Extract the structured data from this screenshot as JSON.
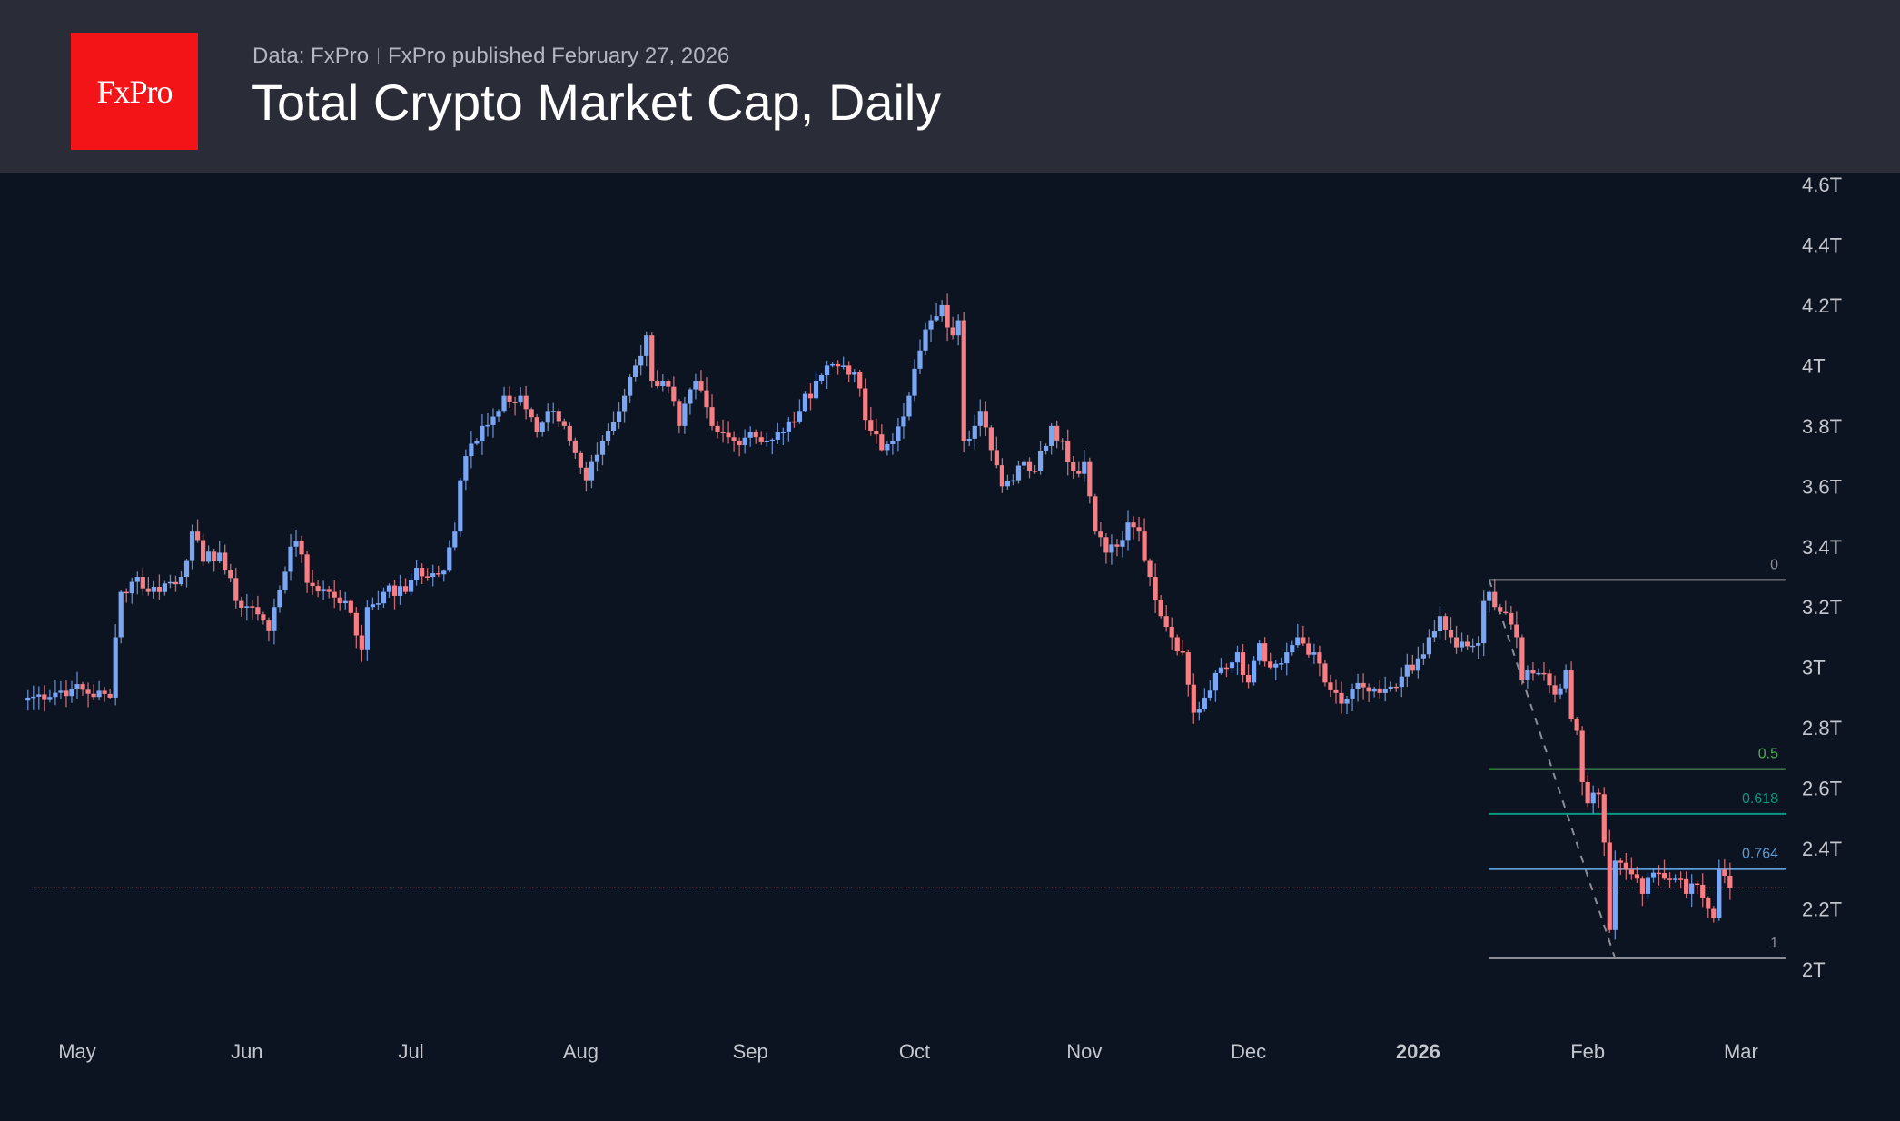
{
  "header": {
    "logo_text": "FxPro",
    "source": "Data: FxPro",
    "published": "FxPro published February 27, 2026",
    "title": "Total Crypto Market Cap, Daily"
  },
  "colors": {
    "up": "#7aa7f5",
    "down": "#f77f84",
    "background": "#0d1421",
    "header_bg": "#2a2d38",
    "brand_red": "#f21416"
  },
  "chart_data": {
    "type": "candlestick",
    "title": "Total Crypto Market Cap, Daily",
    "y_unit": "T",
    "ylim": [
      1.75,
      4.7
    ],
    "y_ticks": [
      "2T",
      "2.2T",
      "2.4T",
      "2.6T",
      "2.8T",
      "3T",
      "3.2T",
      "3.4T",
      "3.6T",
      "3.8T",
      "4T",
      "4.2T",
      "4.4T",
      "4.6T"
    ],
    "y_tick_values": [
      2,
      2.2,
      2.4,
      2.6,
      2.8,
      3,
      3.2,
      3.4,
      3.6,
      3.8,
      4,
      4.2,
      4.4,
      4.6
    ],
    "x_ticks": [
      {
        "label": "May",
        "date": "2025-05-01",
        "bold": false
      },
      {
        "label": "Jun",
        "date": "2025-06-01",
        "bold": false
      },
      {
        "label": "Jul",
        "date": "2025-07-01",
        "bold": false
      },
      {
        "label": "Aug",
        "date": "2025-08-01",
        "bold": false
      },
      {
        "label": "Sep",
        "date": "2025-09-01",
        "bold": false
      },
      {
        "label": "Oct",
        "date": "2025-10-01",
        "bold": false
      },
      {
        "label": "Nov",
        "date": "2025-11-01",
        "bold": false
      },
      {
        "label": "Dec",
        "date": "2025-12-01",
        "bold": false
      },
      {
        "label": "2026",
        "date": "2026-01-01",
        "bold": true
      },
      {
        "label": "Feb",
        "date": "2026-02-01",
        "bold": false
      },
      {
        "label": "Mar",
        "date": "2026-03-01",
        "bold": false
      }
    ],
    "approx_closes": [
      [
        "2025-04-22",
        2.9
      ],
      [
        "2025-04-30",
        2.93
      ],
      [
        "2025-05-07",
        2.9
      ],
      [
        "2025-05-08",
        3.1
      ],
      [
        "2025-05-09",
        3.25
      ],
      [
        "2025-05-12",
        3.3
      ],
      [
        "2025-05-14",
        3.25
      ],
      [
        "2025-05-20",
        3.3
      ],
      [
        "2025-05-22",
        3.45
      ],
      [
        "2025-05-24",
        3.35
      ],
      [
        "2025-05-27",
        3.38
      ],
      [
        "2025-05-30",
        3.22
      ],
      [
        "2025-06-02",
        3.2
      ],
      [
        "2025-06-05",
        3.12
      ],
      [
        "2025-06-06",
        3.2
      ],
      [
        "2025-06-09",
        3.4
      ],
      [
        "2025-06-10",
        3.42
      ],
      [
        "2025-06-12",
        3.28
      ],
      [
        "2025-06-16",
        3.25
      ],
      [
        "2025-06-19",
        3.22
      ],
      [
        "2025-06-22",
        3.06
      ],
      [
        "2025-06-23",
        3.2
      ],
      [
        "2025-06-26",
        3.25
      ],
      [
        "2025-06-30",
        3.25
      ],
      [
        "2025-07-02",
        3.33
      ],
      [
        "2025-07-04",
        3.3
      ],
      [
        "2025-07-07",
        3.32
      ],
      [
        "2025-07-09",
        3.45
      ],
      [
        "2025-07-10",
        3.62
      ],
      [
        "2025-07-11",
        3.7
      ],
      [
        "2025-07-14",
        3.8
      ],
      [
        "2025-07-17",
        3.85
      ],
      [
        "2025-07-18",
        3.9
      ],
      [
        "2025-07-21",
        3.9
      ],
      [
        "2025-07-24",
        3.78
      ],
      [
        "2025-07-27",
        3.85
      ],
      [
        "2025-07-29",
        3.8
      ],
      [
        "2025-08-02",
        3.62
      ],
      [
        "2025-08-05",
        3.75
      ],
      [
        "2025-08-09",
        3.9
      ],
      [
        "2025-08-11",
        4.0
      ],
      [
        "2025-08-13",
        4.1
      ],
      [
        "2025-08-14",
        3.95
      ],
      [
        "2025-08-17",
        3.93
      ],
      [
        "2025-08-19",
        3.8
      ],
      [
        "2025-08-22",
        3.95
      ],
      [
        "2025-08-25",
        3.8
      ],
      [
        "2025-08-26",
        3.78
      ],
      [
        "2025-08-29",
        3.75
      ],
      [
        "2025-09-01",
        3.78
      ],
      [
        "2025-09-04",
        3.75
      ],
      [
        "2025-09-07",
        3.78
      ],
      [
        "2025-09-10",
        3.85
      ],
      [
        "2025-09-13",
        3.95
      ],
      [
        "2025-09-15",
        4.0
      ],
      [
        "2025-09-18",
        4.0
      ],
      [
        "2025-09-20",
        3.98
      ],
      [
        "2025-09-22",
        3.82
      ],
      [
        "2025-09-25",
        3.72
      ],
      [
        "2025-09-27",
        3.75
      ],
      [
        "2025-09-30",
        3.9
      ],
      [
        "2025-10-02",
        4.05
      ],
      [
        "2025-10-04",
        4.15
      ],
      [
        "2025-10-06",
        4.2
      ],
      [
        "2025-10-08",
        4.1
      ],
      [
        "2025-10-09",
        4.15
      ],
      [
        "2025-10-10",
        3.75
      ],
      [
        "2025-10-12",
        3.8
      ],
      [
        "2025-10-13",
        3.85
      ],
      [
        "2025-10-15",
        3.72
      ],
      [
        "2025-10-17",
        3.6
      ],
      [
        "2025-10-19",
        3.62
      ],
      [
        "2025-10-21",
        3.68
      ],
      [
        "2025-10-23",
        3.65
      ],
      [
        "2025-10-26",
        3.8
      ],
      [
        "2025-10-28",
        3.75
      ],
      [
        "2025-10-30",
        3.65
      ],
      [
        "2025-11-01",
        3.68
      ],
      [
        "2025-11-03",
        3.45
      ],
      [
        "2025-11-05",
        3.38
      ],
      [
        "2025-11-07",
        3.4
      ],
      [
        "2025-11-09",
        3.48
      ],
      [
        "2025-11-11",
        3.45
      ],
      [
        "2025-11-13",
        3.3
      ],
      [
        "2025-11-15",
        3.17
      ],
      [
        "2025-11-17",
        3.1
      ],
      [
        "2025-11-19",
        3.05
      ],
      [
        "2025-11-21",
        2.85
      ],
      [
        "2025-11-23",
        2.9
      ],
      [
        "2025-11-26",
        3.0
      ],
      [
        "2025-11-29",
        3.05
      ],
      [
        "2025-12-01",
        2.95
      ],
      [
        "2025-12-03",
        3.08
      ],
      [
        "2025-12-05",
        3.0
      ],
      [
        "2025-12-08",
        3.05
      ],
      [
        "2025-12-10",
        3.1
      ],
      [
        "2025-12-13",
        3.05
      ],
      [
        "2025-12-15",
        2.95
      ],
      [
        "2025-12-18",
        2.88
      ],
      [
        "2025-12-20",
        2.93
      ],
      [
        "2025-12-23",
        2.92
      ],
      [
        "2025-12-26",
        2.93
      ],
      [
        "2025-12-29",
        2.97
      ],
      [
        "2026-01-01",
        3.03
      ],
      [
        "2026-01-03",
        3.1
      ],
      [
        "2026-01-05",
        3.17
      ],
      [
        "2026-01-07",
        3.1
      ],
      [
        "2026-01-10",
        3.07
      ],
      [
        "2026-01-12",
        3.08
      ],
      [
        "2026-01-13",
        3.22
      ],
      [
        "2026-01-14",
        3.25
      ],
      [
        "2026-01-15",
        3.2
      ],
      [
        "2026-01-17",
        3.18
      ],
      [
        "2026-01-19",
        3.1
      ],
      [
        "2026-01-20",
        2.96
      ],
      [
        "2026-01-22",
        2.98
      ],
      [
        "2026-01-24",
        2.98
      ],
      [
        "2026-01-26",
        2.91
      ],
      [
        "2026-01-28",
        2.99
      ],
      [
        "2026-01-29",
        2.83
      ],
      [
        "2026-01-30",
        2.79
      ],
      [
        "2026-01-31",
        2.62
      ],
      [
        "2026-02-01",
        2.55
      ],
      [
        "2026-02-03",
        2.58
      ],
      [
        "2026-02-04",
        2.42
      ],
      [
        "2026-02-05",
        2.13
      ],
      [
        "2026-02-06",
        2.36
      ],
      [
        "2026-02-08",
        2.33
      ],
      [
        "2026-02-10",
        2.3
      ],
      [
        "2026-02-11",
        2.25
      ],
      [
        "2026-02-13",
        2.32
      ],
      [
        "2026-02-15",
        2.3
      ],
      [
        "2026-02-17",
        2.3
      ],
      [
        "2026-02-19",
        2.25
      ],
      [
        "2026-02-21",
        2.28
      ],
      [
        "2026-02-23",
        2.2
      ],
      [
        "2026-02-24",
        2.17
      ],
      [
        "2026-02-25",
        2.33
      ],
      [
        "2026-02-26",
        2.31
      ],
      [
        "2026-02-27",
        2.27
      ]
    ],
    "last_price": 2.27,
    "fibonacci": {
      "start": {
        "date": "2026-01-14",
        "value": 3.29
      },
      "end": {
        "date": "2026-02-06",
        "value": 2.036
      },
      "levels": [
        {
          "label": "0",
          "ratio": 0,
          "color": "#8a8d96"
        },
        {
          "label": "0.5",
          "ratio": 0.5,
          "color": "#4caf50"
        },
        {
          "label": "0.618",
          "ratio": 0.618,
          "color": "#089981"
        },
        {
          "label": "0.764",
          "ratio": 0.764,
          "color": "#5b9bd5"
        },
        {
          "label": "1",
          "ratio": 1,
          "color": "#8a8d96"
        }
      ]
    },
    "grid": false
  }
}
